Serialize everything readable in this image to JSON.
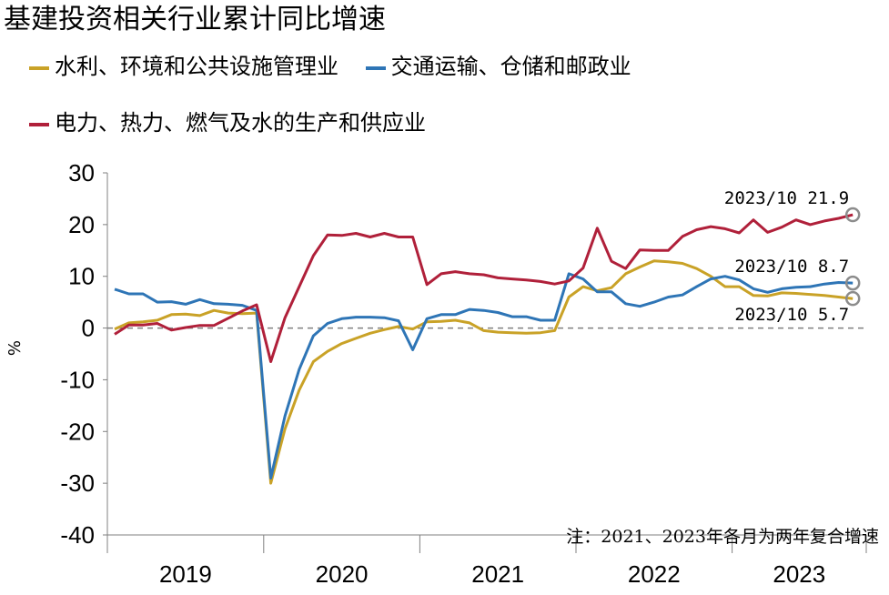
{
  "title": "基建投资相关行业累计同比增速",
  "colors": {
    "water": "#C9A227",
    "transport": "#2E75B6",
    "power": "#B0203A",
    "zero": "#808080"
  },
  "legend": {
    "water": "水利、环境和公共设施管理业",
    "transport": "交通运输、仓储和邮政业",
    "power": "电力、热力、燃气及水的生产和供应业"
  },
  "note": "注：2021、2023年各月为两年复合增速",
  "chart_data": {
    "type": "line",
    "title": "基建投资相关行业累计同比增速",
    "ylabel": "%",
    "xlabel": "",
    "ylim": [
      -40,
      30
    ],
    "yticks": [
      30,
      20,
      10,
      0,
      -10,
      -20,
      -30,
      -40
    ],
    "ytick_labels": [
      "30",
      "20",
      "10",
      "0",
      "-10",
      "-20",
      "-30",
      "-40"
    ],
    "x_groups": [
      "2019",
      "2020",
      "2021",
      "2022",
      "2023"
    ],
    "x_months": [
      "2019-02",
      "2019-03",
      "2019-04",
      "2019-05",
      "2019-06",
      "2019-07",
      "2019-08",
      "2019-09",
      "2019-10",
      "2019-11",
      "2019-12",
      "2020-02",
      "2020-03",
      "2020-04",
      "2020-05",
      "2020-06",
      "2020-07",
      "2020-08",
      "2020-09",
      "2020-10",
      "2020-11",
      "2020-12",
      "2021-02",
      "2021-03",
      "2021-04",
      "2021-05",
      "2021-06",
      "2021-07",
      "2021-08",
      "2021-09",
      "2021-10",
      "2021-11",
      "2021-12",
      "2022-02",
      "2022-03",
      "2022-04",
      "2022-05",
      "2022-06",
      "2022-07",
      "2022-08",
      "2022-09",
      "2022-10",
      "2022-11",
      "2022-12",
      "2023-02",
      "2023-03",
      "2023-04",
      "2023-05",
      "2023-06",
      "2023-07",
      "2023-08",
      "2023-09",
      "2023-10"
    ],
    "grid": false,
    "legend_position": "top",
    "series": [
      {
        "key": "water",
        "name": "水利、环境和公共设施管理业",
        "values": [
          -0.2,
          1.0,
          1.2,
          1.5,
          2.6,
          2.7,
          2.4,
          3.4,
          2.9,
          2.8,
          2.9,
          -30.0,
          -19.5,
          -12.0,
          -6.5,
          -4.5,
          -3.0,
          -2.0,
          -1.0,
          -0.3,
          0.3,
          -0.2,
          1.2,
          1.3,
          1.5,
          1.0,
          -0.5,
          -0.8,
          -0.9,
          -1.0,
          -0.9,
          -0.5,
          6.0,
          8.0,
          7.2,
          7.8,
          10.5,
          11.8,
          13.0,
          12.8,
          12.5,
          11.5,
          10.0,
          8.0,
          8.0,
          6.3,
          6.2,
          6.8,
          6.7,
          6.5,
          6.3,
          6.0,
          5.7
        ]
      },
      {
        "key": "transport",
        "name": "交通运输、仓储和邮政业",
        "values": [
          7.5,
          6.6,
          6.6,
          5.0,
          5.1,
          4.6,
          5.5,
          4.7,
          4.6,
          4.4,
          3.4,
          -29.0,
          -17.0,
          -8.0,
          -1.5,
          0.9,
          1.8,
          2.1,
          2.1,
          2.0,
          1.4,
          -4.2,
          1.8,
          2.6,
          2.6,
          3.6,
          3.4,
          3.0,
          2.2,
          2.2,
          1.5,
          1.5,
          10.5,
          9.5,
          7.0,
          7.0,
          4.7,
          4.2,
          5.0,
          6.0,
          6.4,
          8.0,
          9.5,
          10.0,
          9.3,
          7.6,
          6.9,
          7.6,
          7.9,
          8.0,
          8.5,
          8.8,
          8.7
        ]
      },
      {
        "key": "power",
        "name": "电力、热力、燃气及水的生产和供应业",
        "values": [
          -1.2,
          0.6,
          0.6,
          0.9,
          -0.4,
          0.1,
          0.5,
          0.5,
          1.9,
          3.3,
          4.5,
          -6.5,
          2.0,
          8.0,
          14.0,
          18.0,
          17.9,
          18.3,
          17.6,
          18.3,
          17.6,
          17.6,
          8.4,
          10.5,
          10.9,
          10.5,
          10.3,
          9.7,
          9.5,
          9.3,
          9.0,
          8.5,
          9.1,
          11.6,
          19.3,
          12.9,
          11.5,
          15.1,
          15.0,
          15.0,
          17.7,
          19.0,
          19.6,
          19.2,
          18.4,
          20.9,
          18.5,
          19.5,
          20.9,
          20.0,
          20.7,
          21.2,
          21.9
        ]
      }
    ],
    "annotations": [
      {
        "label": "2023/10 21.9",
        "x": "2023-10",
        "y": 21.9,
        "series": "power"
      },
      {
        "label": "2023/10 8.7",
        "x": "2023-10",
        "y": 8.7,
        "series": "transport"
      },
      {
        "label": "2023/10 5.7",
        "x": "2023-10",
        "y": 5.7,
        "series": "water"
      }
    ]
  }
}
